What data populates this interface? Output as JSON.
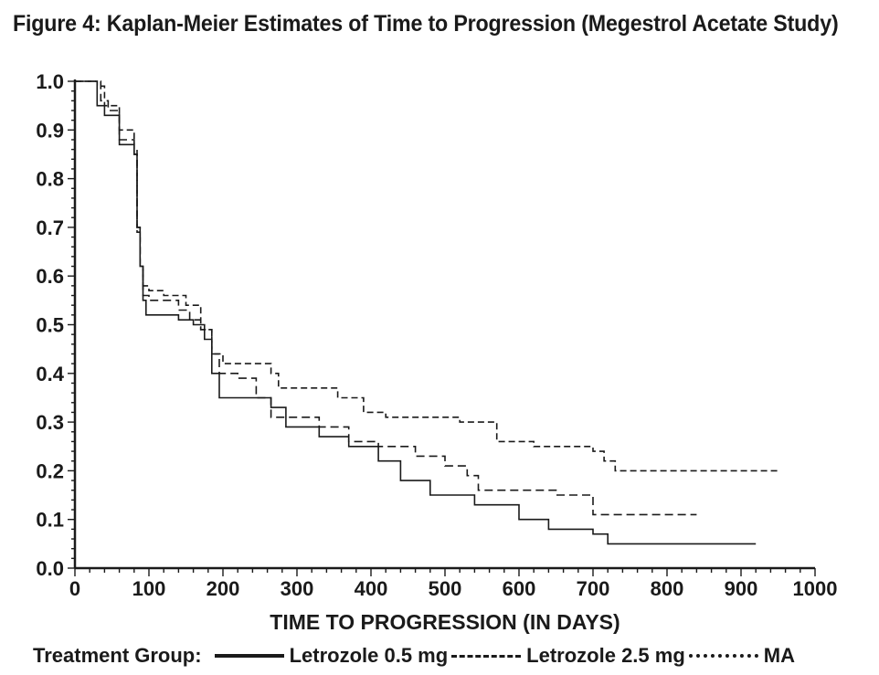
{
  "title": "Figure 4: Kaplan-Meier Estimates of Time to Progression (Megestrol Acetate Study)",
  "chart_data": {
    "type": "line",
    "title": "Figure 4: Kaplan-Meier Estimates of Time to Progression (Megestrol Acetate Study)",
    "xlabel": "TIME TO PROGRESSION (IN DAYS)",
    "ylabel": "",
    "xlim": [
      0,
      1000
    ],
    "ylim": [
      0.0,
      1.0
    ],
    "x_ticks": [
      "0",
      "100",
      "200",
      "300",
      "400",
      "500",
      "600",
      "700",
      "800",
      "900",
      "1000"
    ],
    "y_ticks": [
      "0.0",
      "0.1",
      "0.2",
      "0.3",
      "0.4",
      "0.5",
      "0.6",
      "0.7",
      "0.8",
      "0.9",
      "1.0"
    ],
    "grid": false,
    "legend_title": "Treatment Group:",
    "legend_position": "bottom",
    "series": [
      {
        "name": "Letrozole 0.5 mg",
        "style": "solid",
        "x": [
          0,
          25,
          30,
          40,
          60,
          80,
          84,
          88,
          92,
          96,
          100,
          140,
          160,
          175,
          185,
          195,
          240,
          265,
          285,
          330,
          370,
          410,
          440,
          480,
          540,
          600,
          640,
          700,
          720,
          920
        ],
        "y": [
          1.0,
          1.0,
          0.95,
          0.93,
          0.87,
          0.85,
          0.7,
          0.62,
          0.55,
          0.52,
          0.52,
          0.51,
          0.5,
          0.47,
          0.4,
          0.35,
          0.35,
          0.33,
          0.29,
          0.27,
          0.25,
          0.22,
          0.18,
          0.15,
          0.13,
          0.1,
          0.08,
          0.07,
          0.05,
          0.05
        ]
      },
      {
        "name": "Letrozole 2.5 mg",
        "style": "dashed",
        "x": [
          0,
          30,
          35,
          45,
          60,
          80,
          84,
          88,
          92,
          100,
          140,
          155,
          170,
          185,
          195,
          220,
          245,
          265,
          285,
          330,
          370,
          410,
          460,
          500,
          530,
          545,
          560,
          600,
          650,
          700,
          840
        ],
        "y": [
          1.0,
          1.0,
          0.96,
          0.94,
          0.88,
          0.85,
          0.7,
          0.62,
          0.56,
          0.55,
          0.53,
          0.51,
          0.49,
          0.44,
          0.4,
          0.39,
          0.35,
          0.31,
          0.31,
          0.29,
          0.26,
          0.25,
          0.23,
          0.21,
          0.19,
          0.16,
          0.16,
          0.16,
          0.15,
          0.11,
          0.11
        ]
      },
      {
        "name": "MA",
        "style": "dotted",
        "x": [
          0,
          25,
          30,
          40,
          60,
          80,
          84,
          88,
          92,
          100,
          120,
          150,
          170,
          185,
          200,
          225,
          265,
          275,
          330,
          355,
          390,
          420,
          520,
          570,
          620,
          700,
          715,
          730,
          950
        ],
        "y": [
          1.0,
          1.0,
          0.99,
          0.95,
          0.9,
          0.86,
          0.69,
          0.62,
          0.58,
          0.57,
          0.56,
          0.54,
          0.49,
          0.44,
          0.42,
          0.42,
          0.4,
          0.37,
          0.37,
          0.35,
          0.32,
          0.31,
          0.3,
          0.26,
          0.25,
          0.24,
          0.22,
          0.2,
          0.2
        ]
      }
    ]
  }
}
